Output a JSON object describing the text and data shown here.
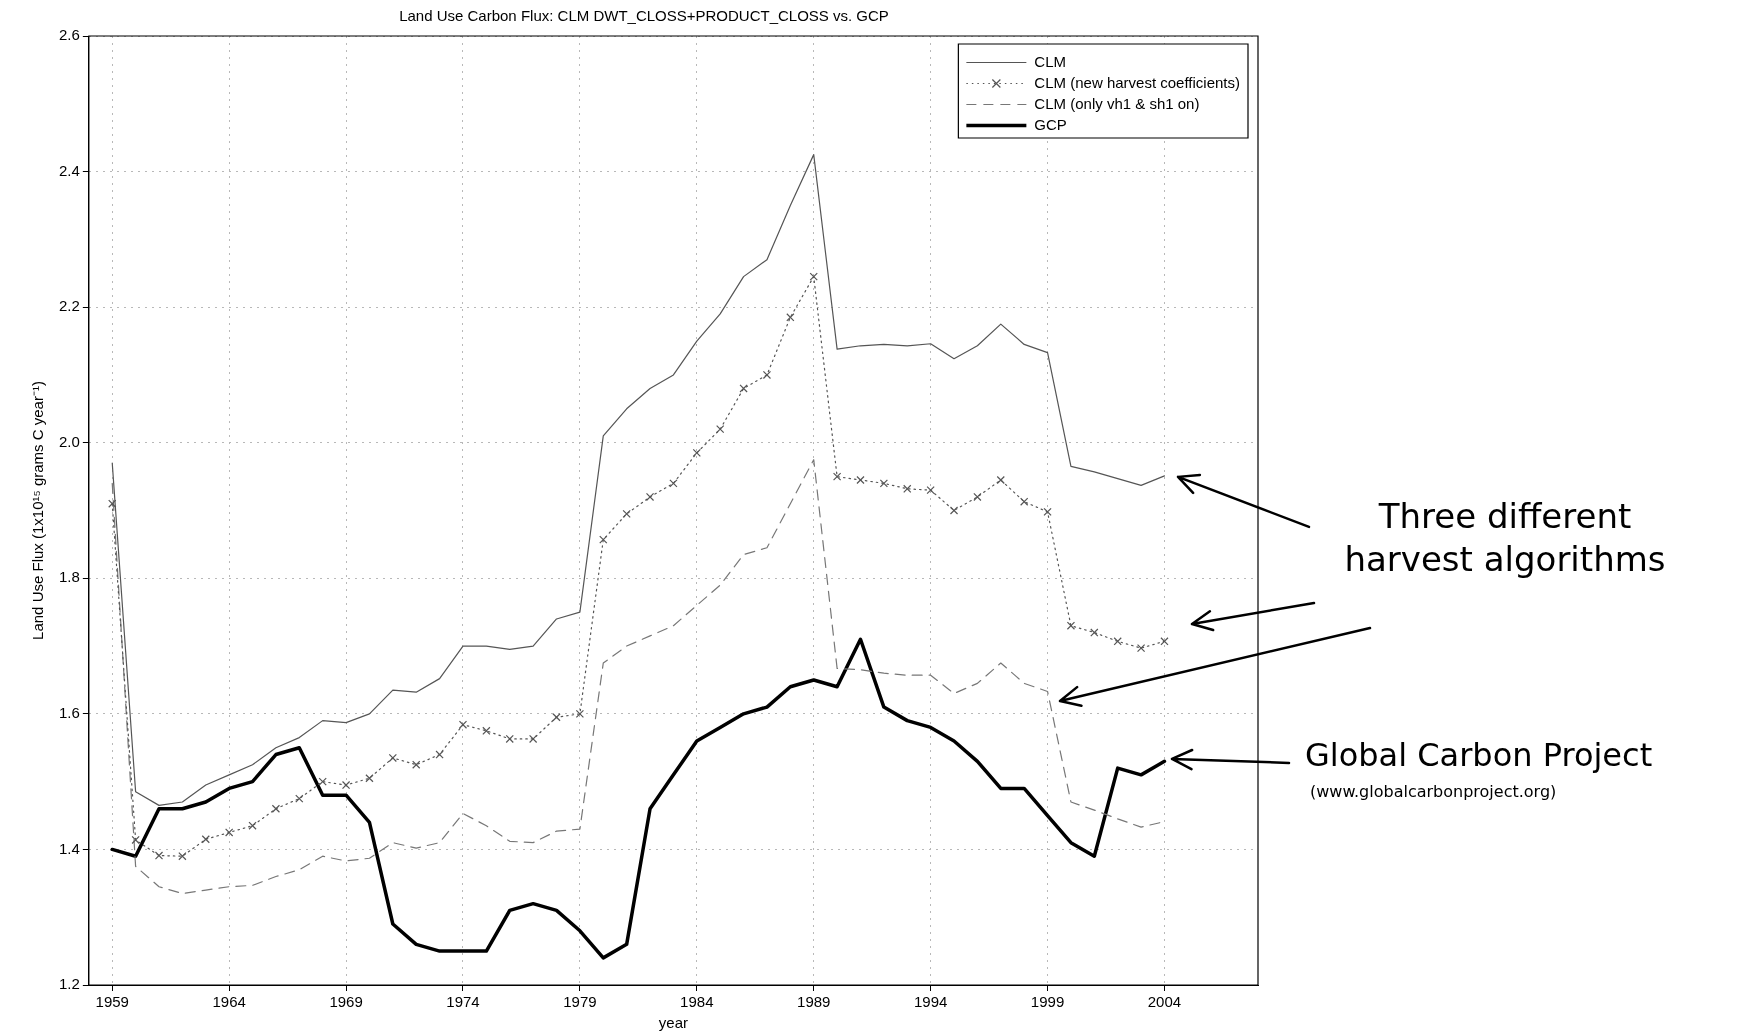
{
  "chart_data": {
    "type": "line",
    "title": "Land Use Carbon Flux: CLM DWT_CLOSS+PRODUCT_CLOSS vs. GCP",
    "xlabel": "year",
    "ylabel": "Land Use Flux (1x10¹⁵ grams C year⁻¹)",
    "x": [
      1959,
      1960,
      1961,
      1962,
      1963,
      1964,
      1965,
      1966,
      1967,
      1968,
      1969,
      1970,
      1971,
      1972,
      1973,
      1974,
      1975,
      1976,
      1977,
      1978,
      1979,
      1980,
      1981,
      1982,
      1983,
      1984,
      1985,
      1986,
      1987,
      1988,
      1989,
      1990,
      1991,
      1992,
      1993,
      1994,
      1995,
      1996,
      1997,
      1998,
      1999,
      2000,
      2001,
      2002,
      2003,
      2004
    ],
    "series": [
      {
        "name": "CLM",
        "color": "#555555",
        "line_style": "solid",
        "marker": "none",
        "values": [
          1.97,
          1.485,
          1.465,
          1.47,
          1.495,
          1.51,
          1.525,
          1.55,
          1.565,
          1.59,
          1.587,
          1.6,
          1.635,
          1.632,
          1.652,
          1.7,
          1.7,
          1.695,
          1.7,
          1.74,
          1.75,
          2.01,
          2.05,
          2.08,
          2.1,
          2.15,
          2.19,
          2.245,
          2.27,
          2.35,
          2.425,
          2.138,
          2.143,
          2.145,
          2.143,
          2.146,
          2.124,
          2.143,
          2.175,
          2.145,
          2.133,
          1.965,
          1.957,
          1.947,
          1.937,
          1.951
        ]
      },
      {
        "name": "CLM (new harvest coefficients)",
        "color": "#555555",
        "line_style": "dotted",
        "marker": "cross",
        "values": [
          1.91,
          1.414,
          1.391,
          1.39,
          1.415,
          1.425,
          1.435,
          1.46,
          1.475,
          1.5,
          1.495,
          1.505,
          1.535,
          1.525,
          1.54,
          1.584,
          1.575,
          1.563,
          1.563,
          1.595,
          1.6,
          1.857,
          1.895,
          1.92,
          1.94,
          1.985,
          2.02,
          2.08,
          2.1,
          2.185,
          2.245,
          1.95,
          1.945,
          1.94,
          1.932,
          1.93,
          1.9,
          1.92,
          1.945,
          1.913,
          1.898,
          1.73,
          1.72,
          1.707,
          1.697,
          1.707
        ]
      },
      {
        "name": "CLM (only vh1 & sh1 on)",
        "color": "#777777",
        "line_style": "dashed",
        "marker": "none",
        "values": [
          1.94,
          1.375,
          1.345,
          1.335,
          1.34,
          1.345,
          1.347,
          1.36,
          1.37,
          1.39,
          1.383,
          1.387,
          1.41,
          1.402,
          1.41,
          1.453,
          1.435,
          1.412,
          1.41,
          1.427,
          1.43,
          1.675,
          1.7,
          1.715,
          1.73,
          1.76,
          1.79,
          1.835,
          1.845,
          1.91,
          1.975,
          1.667,
          1.665,
          1.66,
          1.657,
          1.657,
          1.63,
          1.645,
          1.675,
          1.645,
          1.633,
          1.47,
          1.458,
          1.445,
          1.433,
          1.441
        ]
      },
      {
        "name": "GCP",
        "color": "#000000",
        "line_style": "solid",
        "marker": "none",
        "values": [
          1.4,
          1.39,
          1.46,
          1.46,
          1.47,
          1.49,
          1.5,
          1.54,
          1.55,
          1.48,
          1.48,
          1.44,
          1.29,
          1.26,
          1.25,
          1.25,
          1.25,
          1.31,
          1.32,
          1.31,
          1.28,
          1.24,
          1.26,
          1.46,
          1.51,
          1.56,
          1.58,
          1.6,
          1.61,
          1.64,
          1.65,
          1.64,
          1.71,
          1.61,
          1.59,
          1.58,
          1.56,
          1.53,
          1.49,
          1.49,
          1.45,
          1.41,
          1.39,
          1.52,
          1.51,
          1.53
        ]
      }
    ],
    "xlim": [
      1958,
      2008
    ],
    "xticks": [
      1959,
      1964,
      1969,
      1974,
      1979,
      1984,
      1989,
      1994,
      1999,
      2004
    ],
    "ylim": [
      1.2,
      2.6
    ],
    "yticks": [
      1.2,
      1.4,
      1.6,
      1.8,
      {
        "value": 2,
        "label": "2.0"
      },
      2.2,
      2.4,
      2.6
    ],
    "grid": true,
    "legend": "top right",
    "annotations": [
      "Three different harvest algorithms",
      "Global Carbon Project",
      "(www.globalcarbonproject.org)"
    ]
  }
}
